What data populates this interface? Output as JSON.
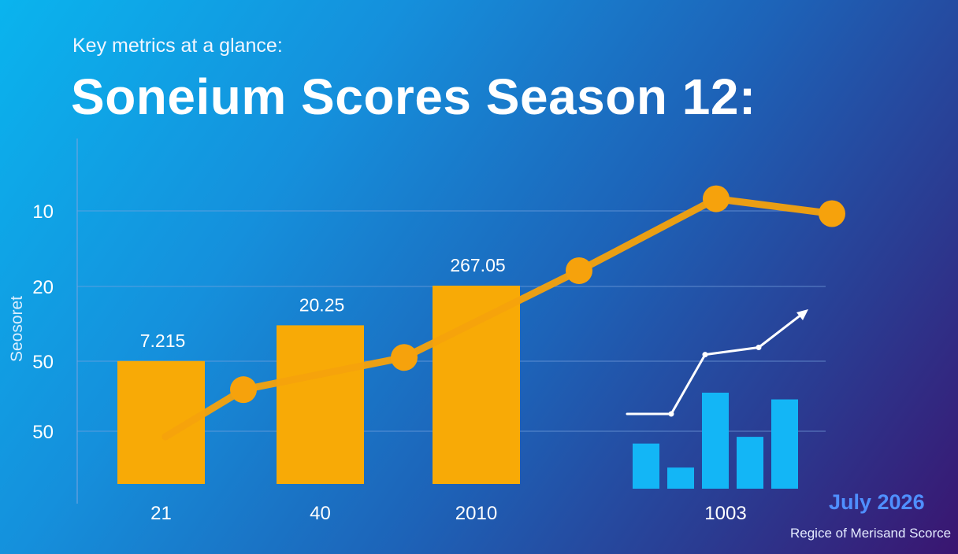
{
  "header": {
    "subtitle": "Key metrics at a glance:",
    "title": "Soneium Scores Season 12:"
  },
  "footer": {
    "date": "July 2026",
    "source": "Regice of Merisand Scorce"
  },
  "colors": {
    "bar": "#f8aa06",
    "line": "#f6a20c",
    "mini_bar": "#13b6f6",
    "mini_line": "#ffffff",
    "grid": "#7aa4e0"
  },
  "chart_data": [
    {
      "type": "bar",
      "ylabel": "Seosoret",
      "y_ticks": [
        "10",
        "20",
        "50",
        "50"
      ],
      "grid": true,
      "categories": [
        "21",
        "40",
        "2010"
      ],
      "values": [
        7.215,
        20.25,
        267.05
      ],
      "data_labels": [
        "7.215",
        "20.25",
        "267.05"
      ],
      "bar_heights_relative": [
        0.62,
        0.8,
        1.0
      ]
    },
    {
      "type": "line",
      "levels": [
        0.0,
        0.19,
        0.32,
        0.67,
        0.96,
        0.9
      ],
      "show_markers": [
        false,
        true,
        true,
        true,
        true,
        true
      ]
    },
    {
      "type": "bar",
      "x_tick": "1003",
      "levels": [
        0.47,
        0.22,
        1.0,
        0.54,
        0.93
      ],
      "trend": {
        "type": "line",
        "levels": [
          0.0,
          0.0,
          0.58,
          0.65,
          1.0
        ],
        "arrow": true
      }
    }
  ]
}
